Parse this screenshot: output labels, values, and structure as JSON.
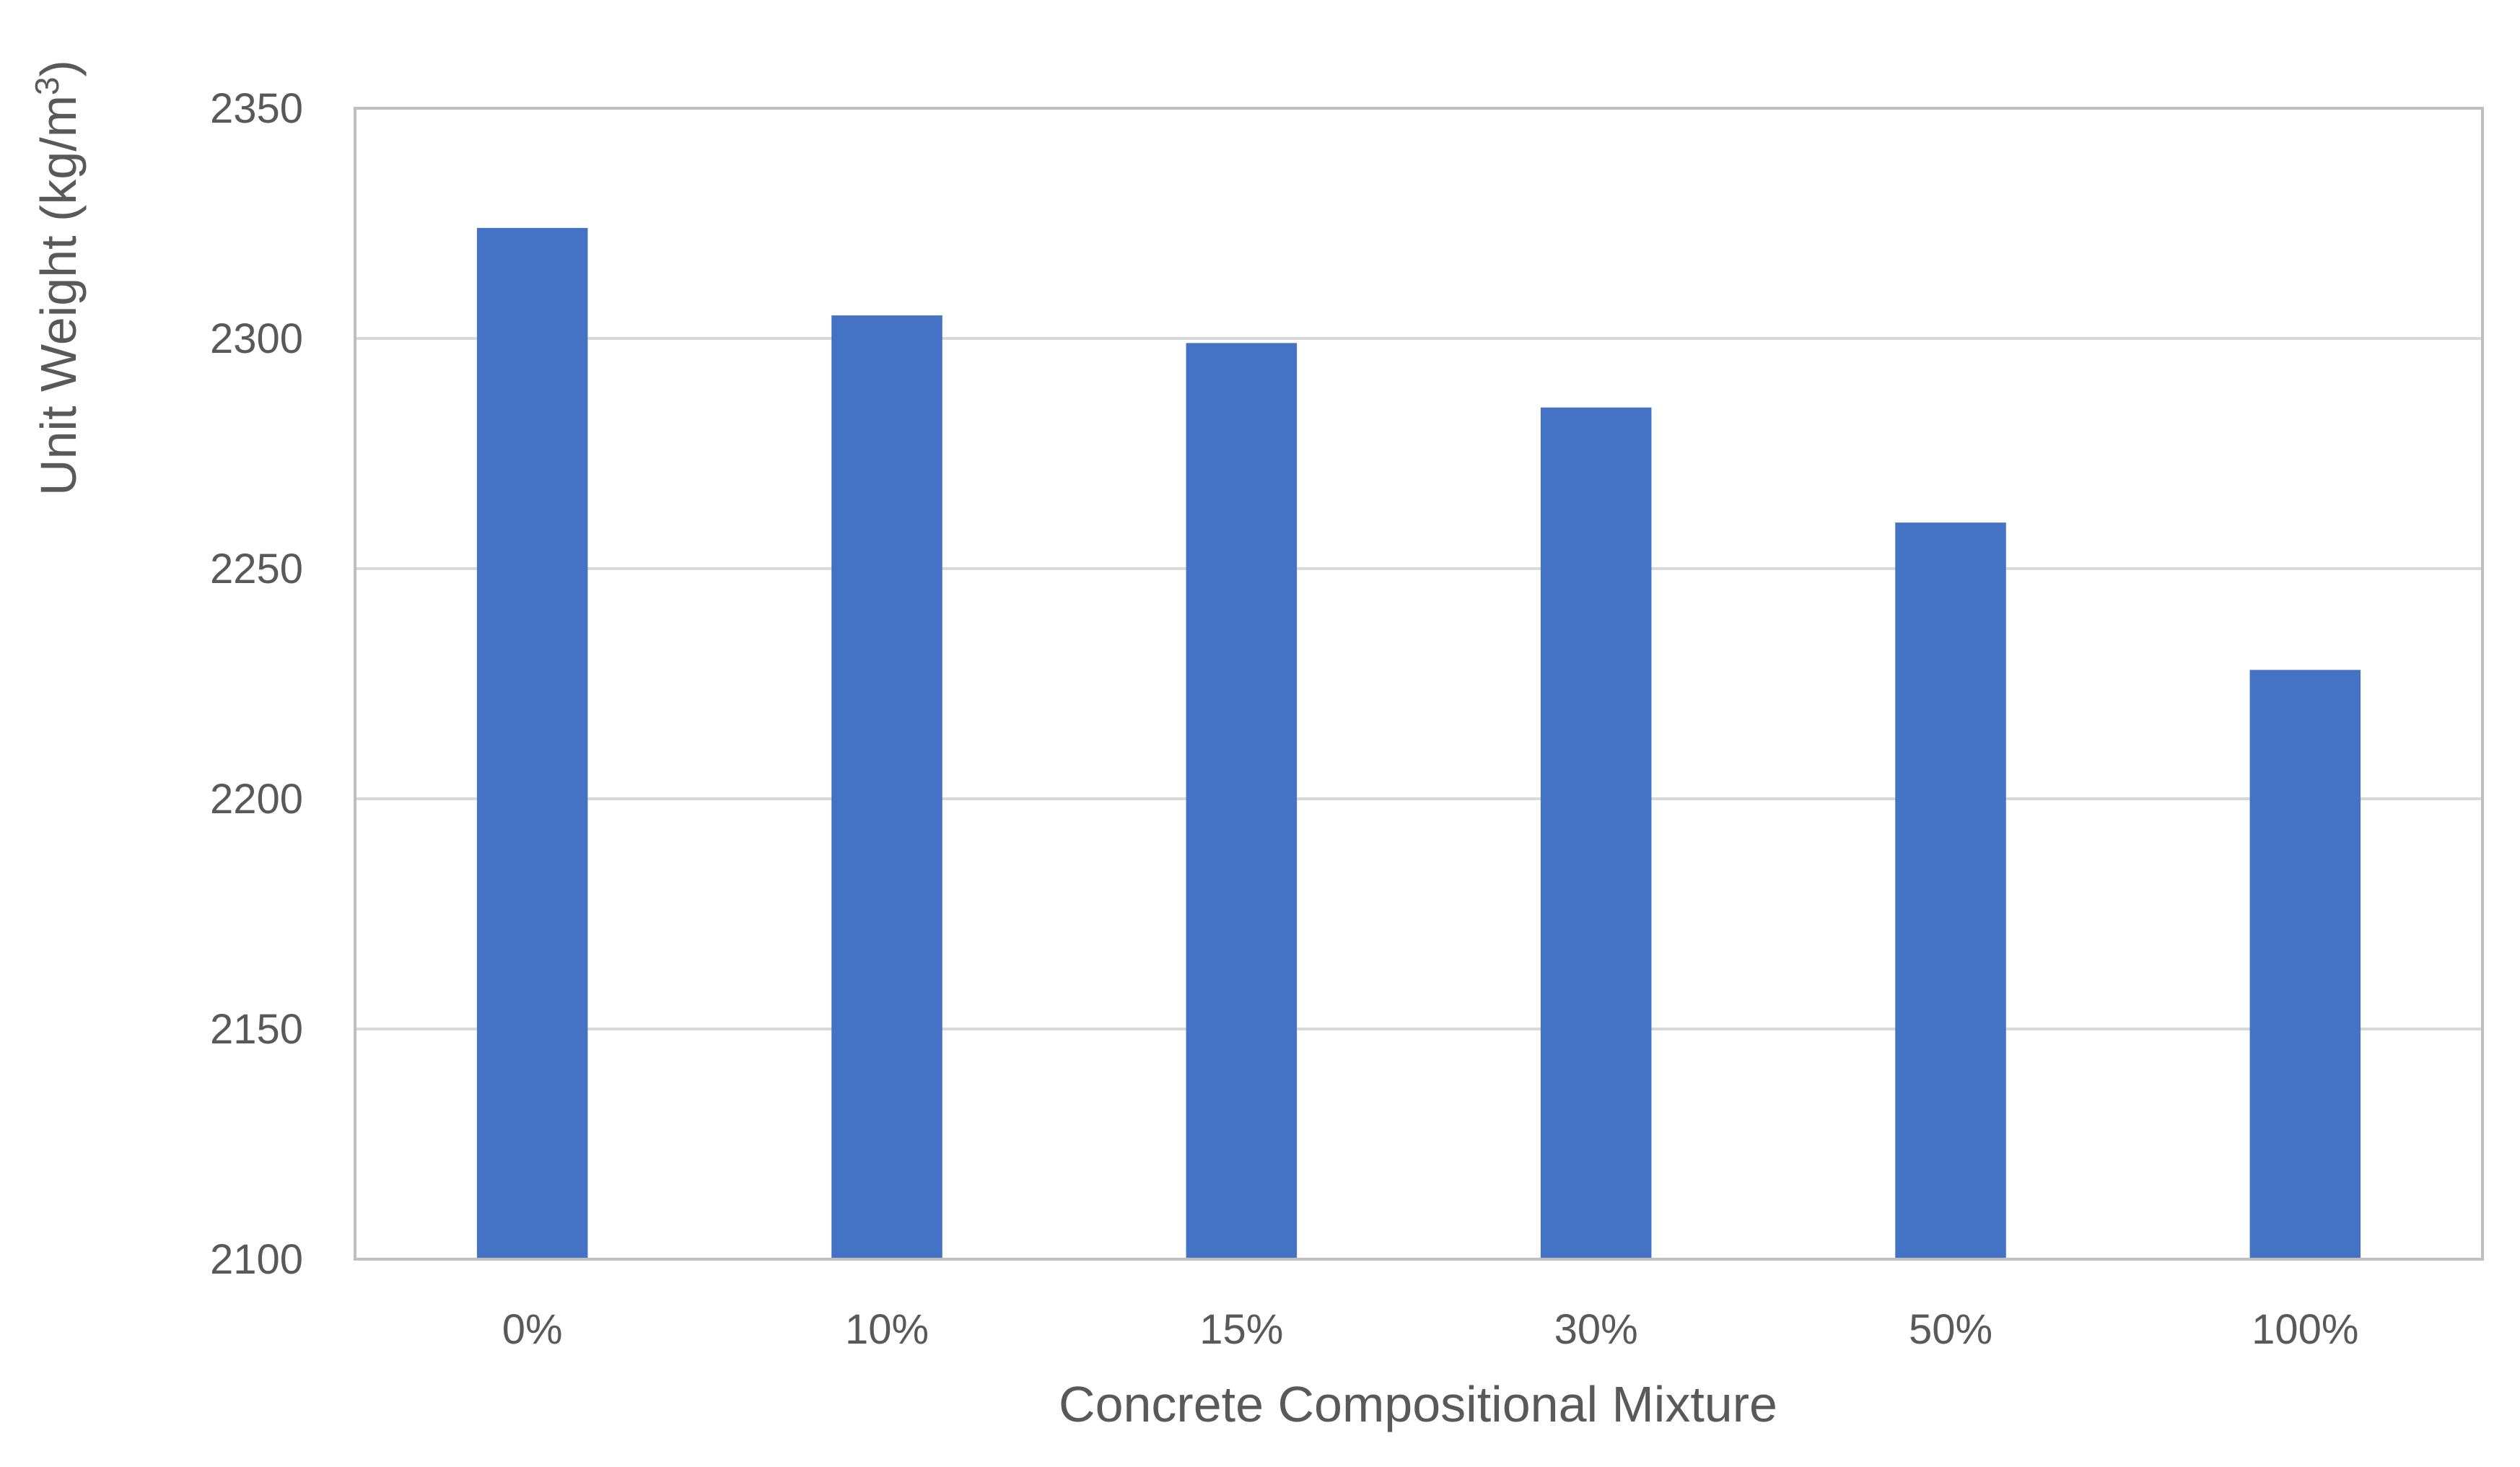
{
  "chart_data": {
    "type": "bar",
    "title": "",
    "xlabel": "Concrete Compositional Mixture",
    "ylabel": "Unit Weight (kg/m",
    "ylabel_superscript": "3",
    "ylabel_close": ")",
    "categories": [
      "0%",
      "10%",
      "15%",
      "30%",
      "50%",
      "100%"
    ],
    "values": [
      2324,
      2305,
      2299,
      2285,
      2260,
      2228
    ],
    "ylim": [
      2100,
      2350
    ],
    "yticks": [
      "2100",
      "2150",
      "2200",
      "2250",
      "2300",
      "2350"
    ],
    "grid": true,
    "legend": "none",
    "colors": {
      "bar": "#4472C4",
      "grid": "#D9D9D9",
      "frame": "#BFBFBF",
      "text": "#595959"
    }
  }
}
